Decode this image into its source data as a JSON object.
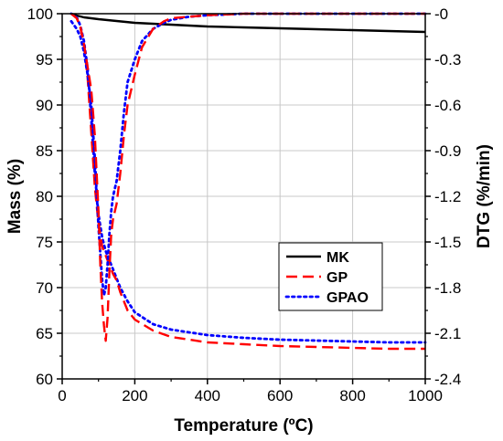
{
  "chart_data": {
    "type": "line",
    "xlabel": "Temperature (ºC)",
    "ylabel": "Mass (%)",
    "y2label": "DTG (%/min)",
    "xlim": [
      0,
      1000
    ],
    "ylim": [
      60,
      100
    ],
    "y2lim": [
      -2.4,
      0
    ],
    "xticks": [
      "0",
      "200",
      "400",
      "600",
      "800",
      "1000"
    ],
    "yticks": [
      "60",
      "65",
      "70",
      "75",
      "80",
      "85",
      "90",
      "95",
      "100"
    ],
    "y2ticks": [
      "-2.4",
      "-2.1",
      "-1.8",
      "-1.5",
      "-1.2",
      "-0.9",
      "-0.6",
      "-0.3",
      "-0"
    ],
    "grid": true,
    "legend_position": "lower-right",
    "colors": {
      "MK": "#000000",
      "GP": "#ff0000",
      "GPAO": "#0000ff"
    },
    "series": [
      {
        "name": "MK",
        "axis": "left",
        "style": "solid",
        "x": [
          25,
          40,
          60,
          80,
          100,
          150,
          200,
          300,
          400,
          500,
          600,
          700,
          800,
          900,
          1000
        ],
        "y": [
          100,
          99.8,
          99.6,
          99.5,
          99.4,
          99.2,
          99.0,
          98.8,
          98.6,
          98.5,
          98.4,
          98.3,
          98.2,
          98.1,
          98.0
        ]
      },
      {
        "name": "GP",
        "axis": "left",
        "style": "dashed",
        "x": [
          25,
          40,
          50,
          60,
          70,
          80,
          90,
          100,
          110,
          120,
          130,
          140,
          150,
          160,
          180,
          200,
          250,
          300,
          400,
          500,
          600,
          700,
          800,
          900,
          1000
        ],
        "y": [
          100,
          99.5,
          98.5,
          96.5,
          93,
          87,
          81,
          77,
          74.5,
          73.5,
          72.5,
          71.5,
          70.8,
          69.5,
          67.5,
          66.5,
          65.3,
          64.6,
          64.0,
          63.8,
          63.6,
          63.5,
          63.4,
          63.3,
          63.3
        ]
      },
      {
        "name": "GPAO",
        "axis": "left",
        "style": "dotted",
        "x": [
          25,
          40,
          50,
          60,
          70,
          80,
          90,
          100,
          110,
          120,
          130,
          140,
          150,
          160,
          180,
          200,
          250,
          300,
          400,
          500,
          600,
          700,
          800,
          900,
          1000
        ],
        "y": [
          100,
          99.6,
          98.7,
          97,
          94,
          88.5,
          82.5,
          78,
          75.5,
          74,
          73,
          72,
          71,
          70,
          68.5,
          67.3,
          66.0,
          65.4,
          64.8,
          64.5,
          64.3,
          64.2,
          64.1,
          64.0,
          64.0
        ]
      },
      {
        "name": "GP",
        "axis": "right",
        "style": "dashed",
        "show_in_legend": false,
        "x": [
          25,
          40,
          50,
          60,
          70,
          80,
          90,
          100,
          105,
          110,
          115,
          120,
          125,
          130,
          135,
          140,
          150,
          160,
          170,
          180,
          200,
          220,
          250,
          280,
          300,
          350,
          400,
          500,
          600,
          700,
          800,
          900,
          1000
        ],
        "y": [
          0,
          -0.03,
          -0.08,
          -0.2,
          -0.35,
          -0.5,
          -0.8,
          -1.3,
          -1.65,
          -1.9,
          -2.05,
          -2.15,
          -2.0,
          -1.7,
          -1.45,
          -1.35,
          -1.25,
          -1.05,
          -0.8,
          -0.6,
          -0.4,
          -0.22,
          -0.1,
          -0.05,
          -0.03,
          -0.02,
          -0.01,
          0,
          0,
          0,
          0,
          0,
          0
        ]
      },
      {
        "name": "GPAO",
        "axis": "right",
        "style": "dotted",
        "show_in_legend": false,
        "x": [
          25,
          40,
          50,
          60,
          70,
          80,
          90,
          100,
          110,
          115,
          120,
          125,
          130,
          135,
          140,
          150,
          160,
          170,
          180,
          200,
          220,
          250,
          280,
          300,
          350,
          400,
          500,
          600,
          700,
          800,
          900,
          1000
        ],
        "y": [
          -0.05,
          -0.1,
          -0.15,
          -0.25,
          -0.4,
          -0.6,
          -0.95,
          -1.4,
          -1.75,
          -1.85,
          -1.8,
          -1.65,
          -1.45,
          -1.3,
          -1.2,
          -1.1,
          -0.9,
          -0.65,
          -0.45,
          -0.3,
          -0.18,
          -0.1,
          -0.06,
          -0.04,
          -0.02,
          -0.01,
          0,
          0,
          0,
          0,
          0,
          0
        ]
      }
    ]
  }
}
